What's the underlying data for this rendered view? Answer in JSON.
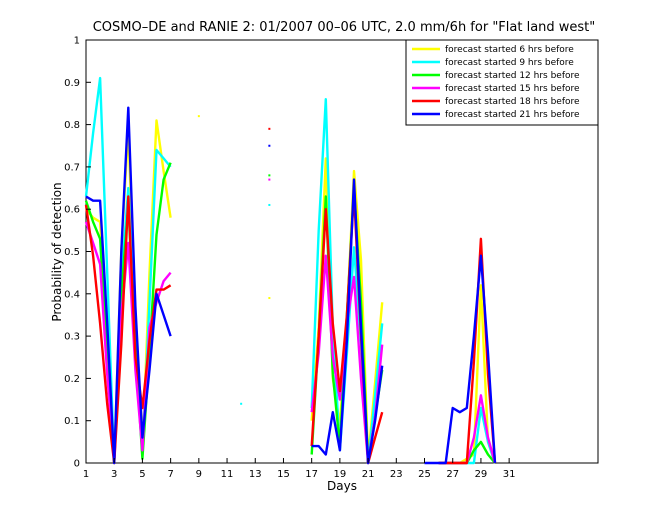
{
  "chart_data": {
    "type": "line",
    "title": "COSMO–DE and RANIE 2: 01/2007 00–06 UTC, 2.0 mm/6h for \"Flat land west\"",
    "xlabel": "Days",
    "ylabel": "Probability of detection",
    "xlim": [
      1,
      37.3
    ],
    "ylim": [
      0,
      1
    ],
    "xticks": [
      "1",
      "3",
      "5",
      "7",
      "9",
      "11",
      "13",
      "15",
      "17",
      "19",
      "21",
      "23",
      "25",
      "27",
      "29",
      "31"
    ],
    "yticks": [
      "0",
      "0.1",
      "0.2",
      "0.3",
      "0.4",
      "0.5",
      "0.6",
      "0.7",
      "0.8",
      "0.9",
      "1"
    ],
    "grid": false,
    "legend_position": "top-right",
    "x": [
      1,
      1.5,
      2,
      2.5,
      3,
      3.5,
      4,
      4.5,
      5,
      5.5,
      6,
      6.5,
      7,
      7.5,
      8,
      8.5,
      9,
      9.5,
      10,
      10.5,
      11,
      11.5,
      12,
      12.5,
      13,
      13.5,
      14,
      14.5,
      15,
      15.5,
      16,
      16.5,
      17,
      17.5,
      18,
      18.5,
      19,
      19.5,
      20,
      20.5,
      21,
      21.5,
      22,
      22.5,
      23,
      23.5,
      24,
      24.5,
      25,
      25.5,
      26,
      26.5,
      27,
      27.5,
      28,
      28.5,
      29,
      29.5,
      30,
      30.5,
      31
    ],
    "series": [
      {
        "name": "forecast started 6 hrs before",
        "color": "#ffff00",
        "values": [
          0.6,
          0.58,
          0.57,
          0.31,
          0,
          0.5,
          0.79,
          0.33,
          0.02,
          0.45,
          0.81,
          0.69,
          0.58,
          null,
          null,
          null,
          0.82,
          null,
          null,
          null,
          null,
          null,
          null,
          null,
          null,
          null,
          0.39,
          null,
          null,
          null,
          null,
          null,
          0.1,
          0.32,
          0.72,
          0.2,
          0.09,
          0.34,
          0.69,
          0.48,
          0.01,
          0.19,
          0.38,
          null,
          null,
          null,
          null,
          null,
          null,
          null,
          0,
          0,
          0,
          0,
          0.01,
          0.02,
          0.42,
          0.05,
          0,
          null,
          null
        ]
      },
      {
        "name": "forecast started 9 hrs before",
        "color": "#00ffff",
        "values": [
          0.63,
          0.78,
          0.91,
          0.45,
          0,
          0.43,
          0.65,
          0.27,
          0.02,
          0.38,
          0.74,
          0.72,
          0.7,
          null,
          null,
          null,
          null,
          null,
          null,
          null,
          null,
          null,
          0.14,
          null,
          null,
          null,
          0.61,
          null,
          null,
          null,
          null,
          null,
          0.13,
          0.55,
          0.86,
          0.32,
          0.03,
          0.26,
          0.51,
          0.28,
          0,
          0.16,
          0.33,
          null,
          null,
          null,
          null,
          null,
          null,
          null,
          0,
          0,
          0,
          0,
          0,
          0,
          0.13,
          0.05,
          0,
          null,
          null
        ]
      },
      {
        "name": "forecast started 12 hrs before",
        "color": "#00ff00",
        "values": [
          0.62,
          0.57,
          0.53,
          0.25,
          0,
          0.4,
          0.61,
          0.27,
          0.01,
          0.26,
          0.54,
          0.67,
          0.71,
          null,
          null,
          null,
          null,
          null,
          null,
          null,
          null,
          null,
          null,
          null,
          null,
          null,
          0.68,
          null,
          null,
          null,
          null,
          null,
          0.02,
          0.3,
          0.63,
          0.21,
          0.04,
          0.35,
          0.65,
          0.38,
          0,
          0.11,
          0.22,
          null,
          null,
          null,
          null,
          null,
          null,
          null,
          0,
          0,
          0,
          0,
          0,
          0.03,
          0.05,
          0.02,
          0,
          null,
          null
        ]
      },
      {
        "name": "forecast started 15 hrs before",
        "color": "#ff00ff",
        "values": [
          0.57,
          0.52,
          0.47,
          0.21,
          0,
          0.35,
          0.52,
          0.22,
          0.03,
          0.32,
          0.38,
          0.43,
          0.45,
          null,
          null,
          null,
          null,
          null,
          null,
          null,
          null,
          null,
          null,
          null,
          null,
          null,
          0.67,
          null,
          null,
          null,
          null,
          null,
          0.12,
          0.26,
          0.49,
          0.25,
          0.15,
          0.33,
          0.44,
          0.2,
          0,
          0.11,
          0.28,
          null,
          null,
          null,
          null,
          null,
          null,
          null,
          0,
          0,
          0,
          0,
          0,
          0.06,
          0.16,
          0.06,
          0,
          null,
          null
        ]
      },
      {
        "name": "forecast started 18 hrs before",
        "color": "#ff0000",
        "values": [
          0.61,
          0.49,
          0.33,
          0.14,
          0,
          0.28,
          0.63,
          0.25,
          0.13,
          0.29,
          0.41,
          0.41,
          0.42,
          null,
          null,
          null,
          null,
          null,
          null,
          null,
          null,
          null,
          null,
          null,
          null,
          null,
          0.79,
          null,
          null,
          null,
          null,
          null,
          0.04,
          0.3,
          0.6,
          0.33,
          0.17,
          0.35,
          0.64,
          0.3,
          0,
          0.06,
          0.12,
          null,
          null,
          null,
          null,
          null,
          null,
          null,
          0,
          0,
          0,
          0,
          0,
          0.24,
          0.53,
          0.21,
          0,
          null,
          null
        ]
      },
      {
        "name": "forecast started 21 hrs before",
        "color": "#0000ff",
        "values": [
          0.63,
          0.62,
          0.62,
          0.33,
          0,
          0.5,
          0.84,
          0.37,
          0.06,
          0.22,
          0.4,
          0.35,
          0.3,
          null,
          null,
          null,
          null,
          null,
          null,
          null,
          null,
          null,
          null,
          null,
          null,
          null,
          0.75,
          null,
          null,
          null,
          null,
          null,
          0.04,
          0.04,
          0.02,
          0.12,
          0.03,
          0.29,
          0.67,
          0.32,
          0,
          0.1,
          0.23,
          null,
          null,
          null,
          null,
          null,
          0,
          0,
          0,
          0,
          0.13,
          0.12,
          0.13,
          0.3,
          0.49,
          0.26,
          0,
          null,
          null
        ]
      }
    ]
  }
}
